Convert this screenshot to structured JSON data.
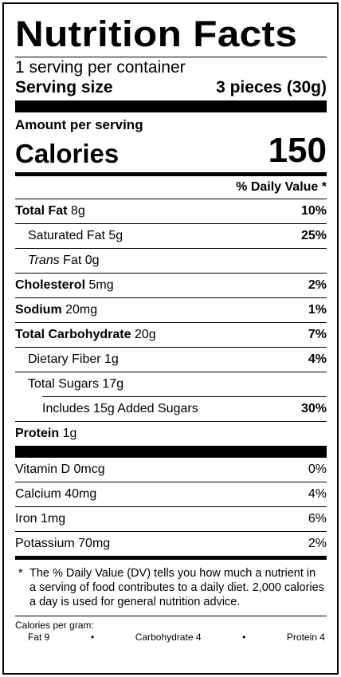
{
  "title": "Nutrition Facts",
  "servings_per_container": "1 serving per container",
  "serving_size": {
    "label": "Serving size",
    "value": "3 pieces (30g)"
  },
  "amount_per_serving": "Amount per serving",
  "calories": {
    "label": "Calories",
    "value": "150"
  },
  "daily_value_header": "% Daily Value *",
  "nutrients": [
    {
      "name": "Total Fat",
      "amount": "8g",
      "dv": "10%"
    },
    {
      "name": "Saturated Fat",
      "amount": "5g",
      "dv": "25%"
    },
    {
      "name_italic": "Trans",
      "name_rest": "Fat",
      "amount": "0g",
      "dv": ""
    },
    {
      "name": "Cholesterol",
      "amount": "5mg",
      "dv": "2%"
    },
    {
      "name": "Sodium",
      "amount": "20mg",
      "dv": "1%"
    },
    {
      "name": "Total Carbohydrate",
      "amount": "20g",
      "dv": "7%"
    },
    {
      "name": "Dietary Fiber",
      "amount": "1g",
      "dv": "4%"
    },
    {
      "name": "Total Sugars",
      "amount": "17g",
      "dv": ""
    },
    {
      "name": "Includes 15g Added Sugars",
      "amount": "",
      "dv": "30%"
    },
    {
      "name": "Protein",
      "amount": "1g",
      "dv": ""
    }
  ],
  "vitamins": [
    {
      "name": "Vitamin D 0mcg",
      "dv": "0%"
    },
    {
      "name": "Calcium 40mg",
      "dv": "4%"
    },
    {
      "name": "Iron 1mg",
      "dv": "6%"
    },
    {
      "name": "Potassium 70mg",
      "dv": "2%"
    }
  ],
  "footnote": {
    "star": "*",
    "text": "The % Daily Value (DV) tells you how much a nutrient in a serving of food contributes to a daily diet. 2,000 calories a day is used for general nutrition advice."
  },
  "calories_per_gram": {
    "label": "Calories per gram:",
    "fat": "Fat 9",
    "carbohydrate": "Carbohydrate 4",
    "protein": "Protein 4",
    "separator": "•"
  }
}
